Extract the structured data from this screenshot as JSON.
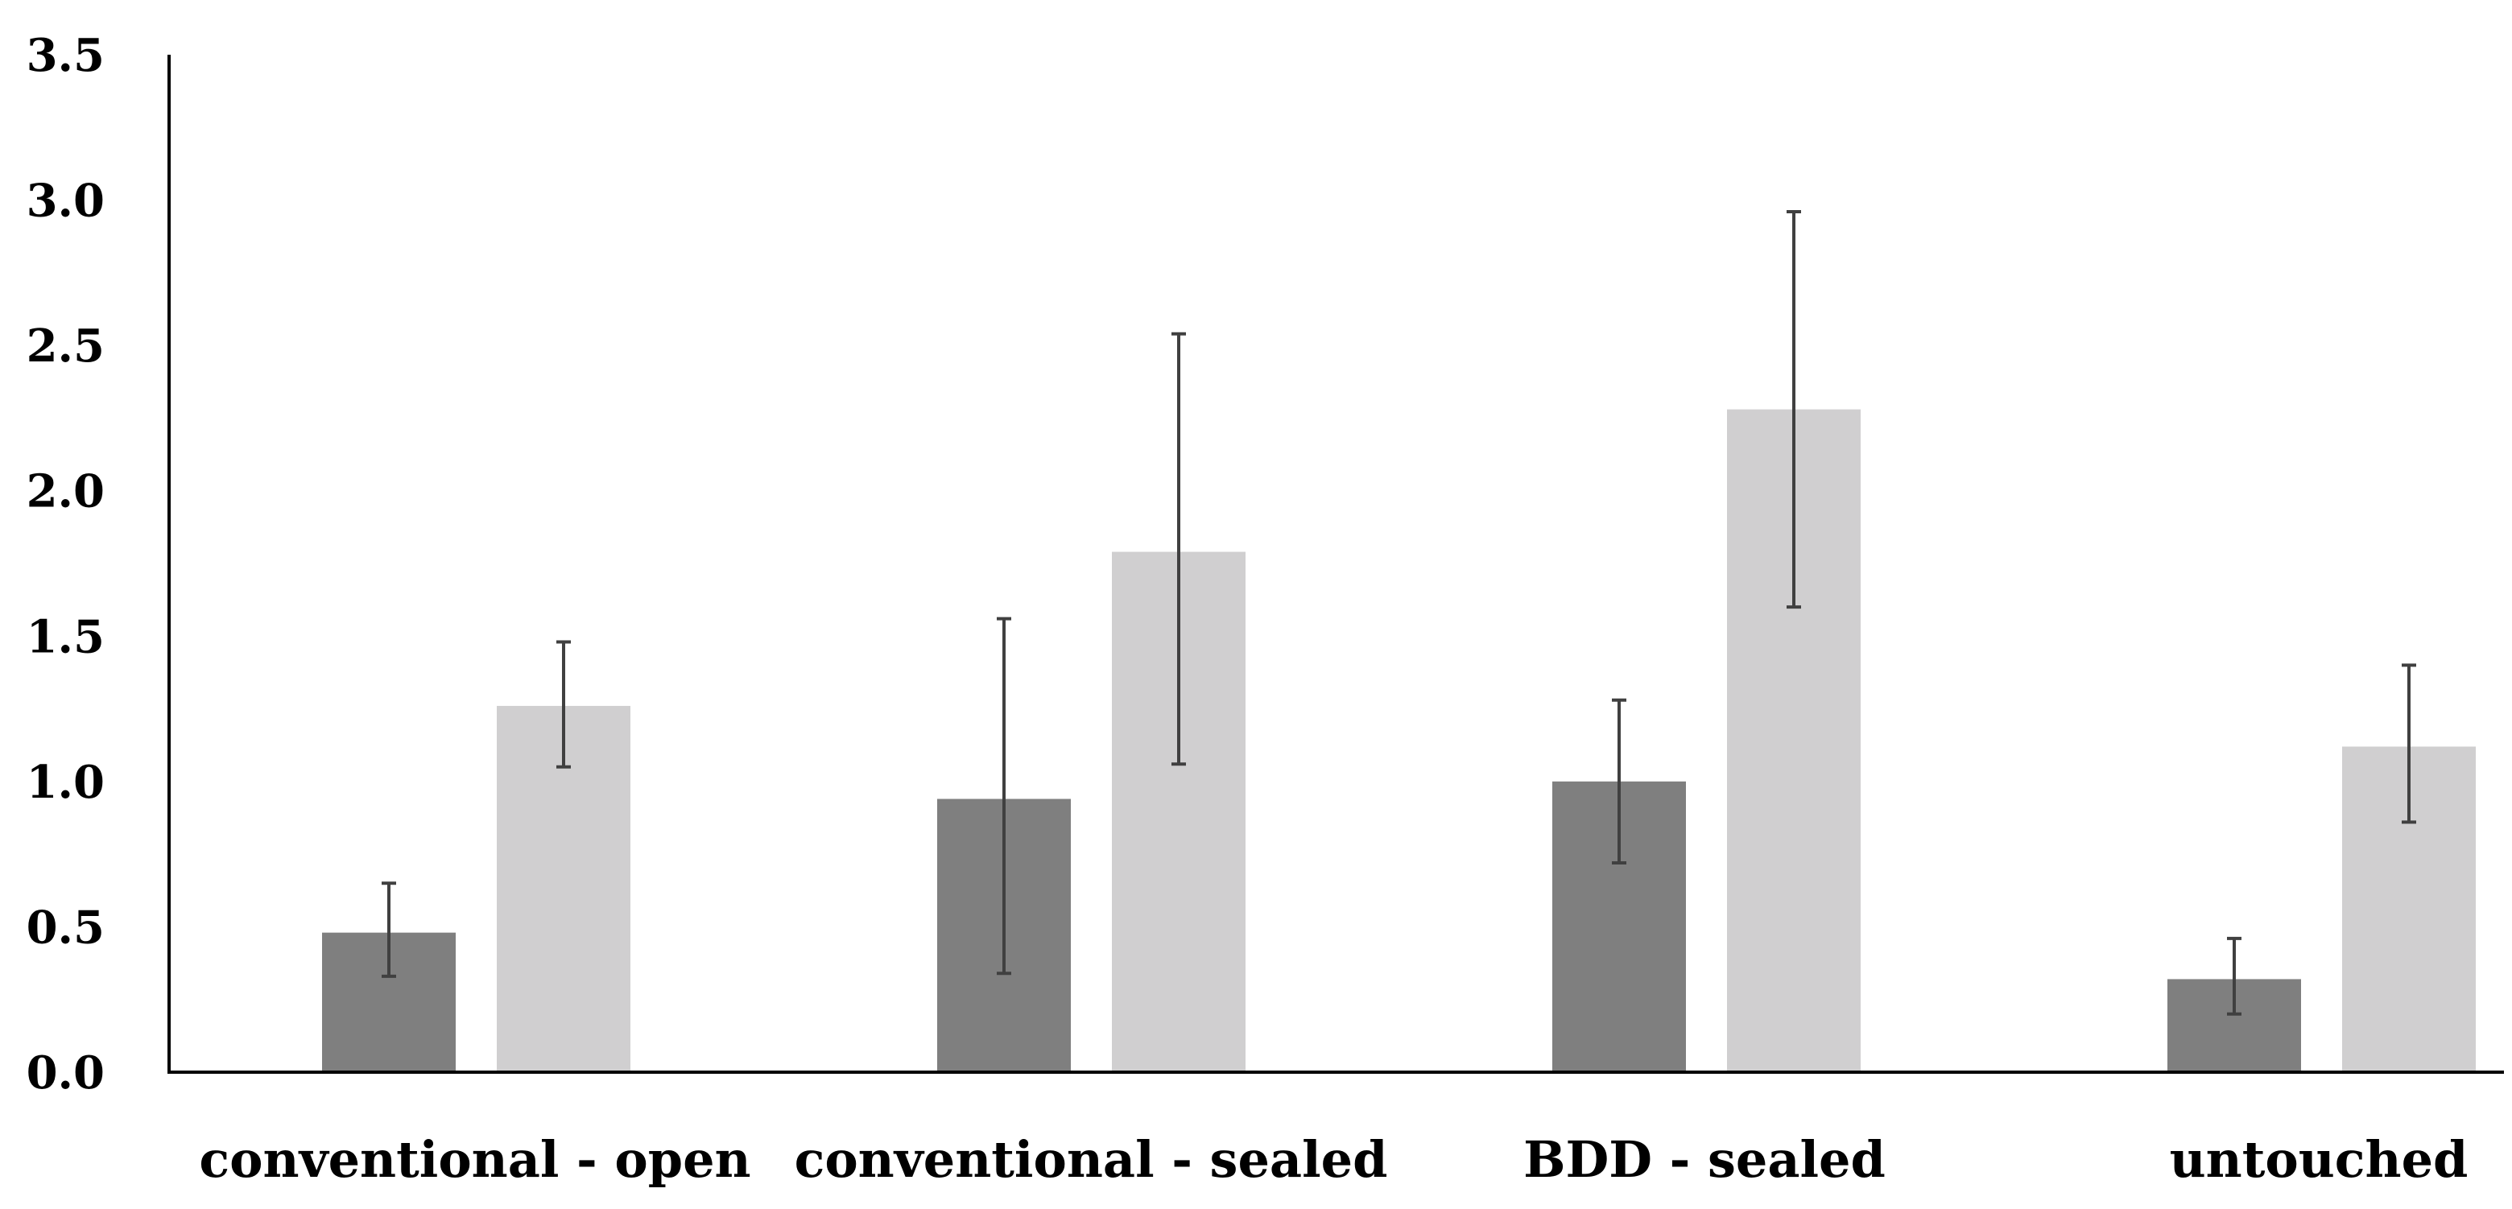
{
  "chart_data": {
    "type": "bar",
    "title": "",
    "xlabel": "",
    "ylabel": "",
    "ylim": [
      0,
      3.5
    ],
    "yticks": [
      "0.0",
      "0.5",
      "1.0",
      "1.5",
      "2.0",
      "2.5",
      "3.0",
      "3.5"
    ],
    "grid": false,
    "legend": "none",
    "categories": [
      "conventional - open",
      "conventional - sealed",
      "BDD - sealed",
      "untouched"
    ],
    "series": [
      {
        "color": "#7f7f7f",
        "values": [
          0.48,
          0.94,
          1.0,
          0.32
        ],
        "error_low": [
          0.33,
          0.34,
          0.72,
          0.2
        ],
        "error_high": [
          0.65,
          1.56,
          1.28,
          0.46
        ]
      },
      {
        "color": "#d0cfd0",
        "values": [
          1.26,
          1.79,
          2.28,
          1.12
        ],
        "error_low": [
          1.05,
          1.06,
          1.6,
          0.86
        ],
        "error_high": [
          1.48,
          2.54,
          2.96,
          1.4
        ]
      }
    ],
    "axis_color": "#000000",
    "error_bar_color": "#404040"
  }
}
